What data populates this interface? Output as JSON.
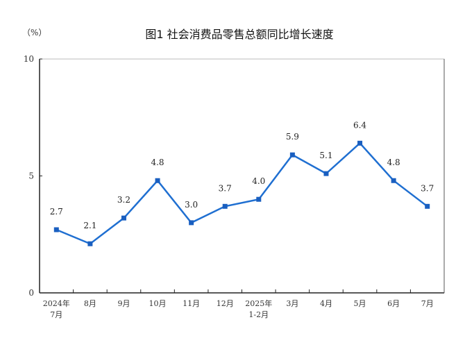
{
  "chart_data": {
    "type": "line",
    "title": "图1  社会消费品零售总额同比增长速度",
    "ylabel": "（%）",
    "xlabel": "",
    "categories": [
      [
        "2024年",
        "7月"
      ],
      [
        "8月"
      ],
      [
        "9月"
      ],
      [
        "10月"
      ],
      [
        "11月"
      ],
      [
        "12月"
      ],
      [
        "2025年",
        "1-2月"
      ],
      [
        "3月"
      ],
      [
        "4月"
      ],
      [
        "5月"
      ],
      [
        "6月"
      ],
      [
        "7月"
      ]
    ],
    "series": [
      {
        "values": [
          2.7,
          2.1,
          3.2,
          4.8,
          3.0,
          3.7,
          4.0,
          5.9,
          5.1,
          6.4,
          4.8,
          3.7
        ],
        "color": "#1f6fd1"
      }
    ],
    "data_labels": [
      "2.7",
      "2.1",
      "3.2",
      "4.8",
      "3.0",
      "3.7",
      "4.0",
      "5.9",
      "5.1",
      "6.4",
      "4.8",
      "3.7"
    ],
    "ylim": [
      0,
      10
    ],
    "yticks": [
      "0",
      "5",
      "10"
    ],
    "grid": false,
    "marker": "square"
  }
}
